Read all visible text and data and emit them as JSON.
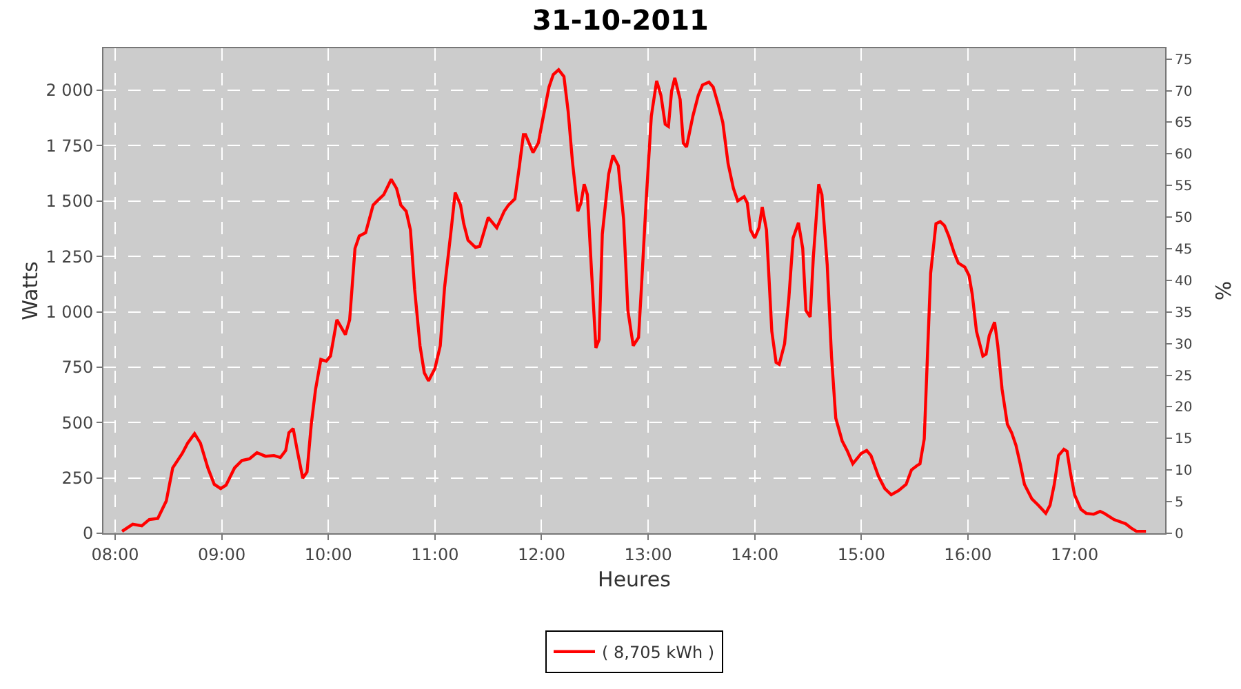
{
  "chart_data": {
    "type": "line",
    "title": "31-10-2011",
    "xlabel": "Heures",
    "ylabel": "Watts",
    "y2label": "%",
    "xlim": [
      7.89,
      17.85
    ],
    "xticks": [
      {
        "value": 8,
        "label": "08:00"
      },
      {
        "value": 9,
        "label": "09:00"
      },
      {
        "value": 10,
        "label": "10:00"
      },
      {
        "value": 11,
        "label": "11:00"
      },
      {
        "value": 12,
        "label": "12:00"
      },
      {
        "value": 13,
        "label": "13:00"
      },
      {
        "value": 14,
        "label": "14:00"
      },
      {
        "value": 15,
        "label": "15:00"
      },
      {
        "value": 16,
        "label": "16:00"
      },
      {
        "value": 17,
        "label": "17:00"
      }
    ],
    "ylim": [
      0,
      2190
    ],
    "yticks": [
      0,
      250,
      500,
      750,
      {
        "value": 1000,
        "label": "1 000"
      },
      {
        "value": 1250,
        "label": "1 250"
      },
      {
        "value": 1500,
        "label": "1 500"
      },
      {
        "value": 1750,
        "label": "1 750"
      },
      {
        "value": 2000,
        "label": "2 000"
      }
    ],
    "y2lim": [
      0,
      76.7
    ],
    "y2ticks": [
      0,
      5,
      10,
      15,
      20,
      25,
      30,
      35,
      40,
      45,
      50,
      55,
      60,
      65,
      70,
      75
    ],
    "grid": true,
    "legend": "bottom",
    "series": [
      {
        "name": "( 8,705 kWh )",
        "color": "#ff0000",
        "x": [
          8.065,
          8.165,
          8.25,
          8.32,
          8.4,
          8.48,
          8.54,
          8.63,
          8.68,
          8.745,
          8.8,
          8.87,
          8.93,
          8.99,
          9.04,
          9.12,
          9.19,
          9.26,
          9.33,
          9.41,
          9.49,
          9.55,
          9.6,
          9.63,
          9.67,
          9.71,
          9.76,
          9.8,
          9.84,
          9.88,
          9.93,
          9.98,
          10.02,
          10.08,
          10.16,
          10.2,
          10.25,
          10.29,
          10.35,
          10.42,
          10.47,
          10.52,
          10.59,
          10.64,
          10.68,
          10.73,
          10.77,
          10.81,
          10.86,
          10.9,
          10.94,
          11.0,
          11.05,
          11.09,
          11.15,
          11.19,
          11.24,
          11.27,
          11.31,
          11.38,
          11.42,
          11.5,
          11.58,
          11.65,
          11.69,
          11.75,
          11.79,
          11.83,
          11.85,
          11.92,
          11.97,
          12.01,
          12.07,
          12.11,
          12.16,
          12.21,
          12.25,
          12.29,
          12.34,
          12.37,
          12.4,
          12.43,
          12.47,
          12.51,
          12.54,
          12.57,
          12.63,
          12.67,
          12.72,
          12.77,
          12.81,
          12.86,
          12.91,
          12.94,
          12.98,
          13.03,
          13.08,
          13.12,
          13.16,
          13.19,
          13.22,
          13.25,
          13.3,
          13.33,
          13.36,
          13.42,
          13.47,
          13.51,
          13.57,
          13.61,
          13.66,
          13.7,
          13.75,
          13.8,
          13.84,
          13.9,
          13.93,
          13.96,
          14.0,
          14.04,
          14.07,
          14.11,
          14.16,
          14.2,
          14.23,
          14.28,
          14.32,
          14.36,
          14.41,
          14.45,
          14.48,
          14.52,
          14.55,
          14.6,
          14.63,
          14.68,
          14.72,
          14.76,
          14.82,
          14.87,
          14.92,
          15.0,
          15.05,
          15.09,
          15.16,
          15.22,
          15.28,
          15.35,
          15.42,
          15.47,
          15.52,
          15.55,
          15.59,
          15.62,
          15.65,
          15.7,
          15.74,
          15.78,
          15.82,
          15.87,
          15.91,
          15.97,
          16.01,
          16.04,
          16.08,
          16.14,
          16.17,
          16.2,
          16.25,
          16.28,
          16.32,
          16.37,
          16.41,
          16.45,
          16.49,
          16.53,
          16.6,
          16.66,
          16.73,
          16.77,
          16.81,
          16.85,
          16.9,
          16.93,
          16.96,
          17.0,
          17.06,
          17.11,
          17.18,
          17.24,
          17.28,
          17.37,
          17.48,
          17.53,
          17.58,
          17.67
        ],
        "values": [
          9,
          41,
          34,
          62,
          67,
          146,
          295,
          361,
          407,
          450,
          407,
          295,
          221,
          202,
          217,
          295,
          329,
          336,
          364,
          348,
          351,
          342,
          374,
          454,
          473,
          370,
          249,
          277,
          492,
          650,
          785,
          777,
          800,
          964,
          897,
          964,
          1286,
          1342,
          1357,
          1482,
          1506,
          1529,
          1598,
          1557,
          1482,
          1454,
          1370,
          1099,
          847,
          725,
          688,
          744,
          847,
          1108,
          1361,
          1538,
          1482,
          1398,
          1323,
          1291,
          1295,
          1426,
          1379,
          1454,
          1482,
          1510,
          1650,
          1800,
          1800,
          1719,
          1762,
          1865,
          2015,
          2071,
          2093,
          2062,
          1903,
          1678,
          1454,
          1491,
          1576,
          1529,
          1174,
          837,
          875,
          1351,
          1622,
          1706,
          1660,
          1417,
          1006,
          847,
          884,
          1136,
          1491,
          1884,
          2043,
          1977,
          1847,
          1837,
          1996,
          2056,
          1959,
          1762,
          1744,
          1884,
          1977,
          2024,
          2037,
          2015,
          1931,
          1856,
          1669,
          1557,
          1501,
          1520,
          1491,
          1370,
          1333,
          1379,
          1473,
          1370,
          912,
          772,
          763,
          856,
          1062,
          1333,
          1402,
          1286,
          1006,
          977,
          1249,
          1576,
          1529,
          1211,
          800,
          520,
          417,
          370,
          314,
          361,
          374,
          351,
          258,
          202,
          174,
          193,
          221,
          286,
          305,
          314,
          426,
          800,
          1174,
          1398,
          1407,
          1389,
          1342,
          1267,
          1220,
          1202,
          1164,
          1080,
          912,
          800,
          809,
          893,
          953,
          847,
          650,
          492,
          454,
          398,
          314,
          221,
          155,
          127,
          90,
          127,
          221,
          351,
          379,
          370,
          277,
          174,
          108,
          90,
          86,
          99,
          90,
          62,
          43,
          24,
          9,
          9
        ]
      }
    ]
  }
}
